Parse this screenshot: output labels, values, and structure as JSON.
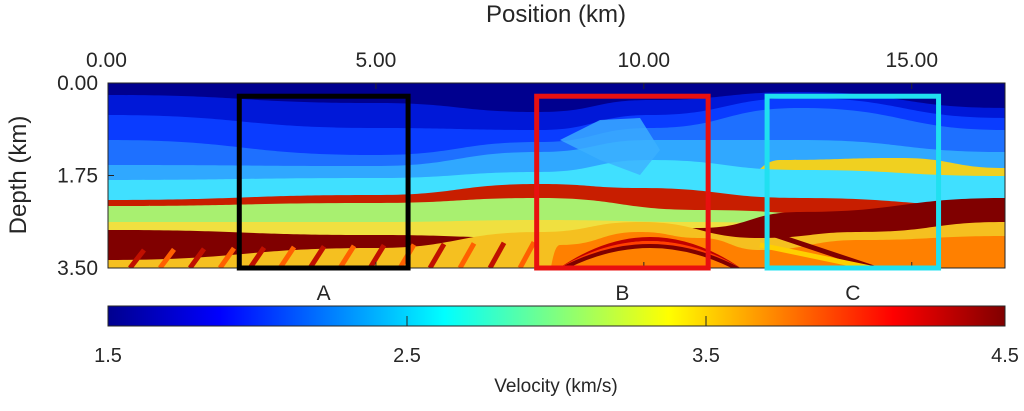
{
  "chart_data": {
    "type": "heatmap",
    "title": "",
    "xlabel": "Position (km)",
    "ylabel": "Depth (km)",
    "xlim": [
      0,
      16.74
    ],
    "ylim": [
      0,
      3.5
    ],
    "x_axis_position": "top",
    "y_reversed": true,
    "xticks": [
      0,
      5,
      10,
      15
    ],
    "xtick_labels": [
      "0.00",
      "5.00",
      "10.00",
      "15.00"
    ],
    "yticks": [
      0,
      1.75,
      3.5
    ],
    "ytick_labels": [
      "0.00",
      "1.75",
      "3.50"
    ],
    "colormap": "jet",
    "colorbar": {
      "label": "Velocity (km/s)",
      "range": [
        1.5,
        4.5
      ],
      "ticks": [
        1.5,
        2.5,
        3.5,
        4.5
      ],
      "tick_labels": [
        "1.5",
        "2.5",
        "3.5",
        "4.5"
      ],
      "placement": "bottom"
    },
    "boxes": [
      {
        "label": "A",
        "color": "#000000",
        "x_range_km": [
          2.45,
          5.6
        ],
        "depth_range_km": [
          0.25,
          3.5
        ]
      },
      {
        "label": "B",
        "color": "#e81010",
        "x_range_km": [
          8.0,
          11.2
        ],
        "depth_range_km": [
          0.25,
          3.5
        ]
      },
      {
        "label": "C",
        "color": "#20e0f0",
        "x_range_km": [
          12.3,
          15.5
        ],
        "depth_range_km": [
          0.25,
          3.5
        ]
      }
    ]
  }
}
